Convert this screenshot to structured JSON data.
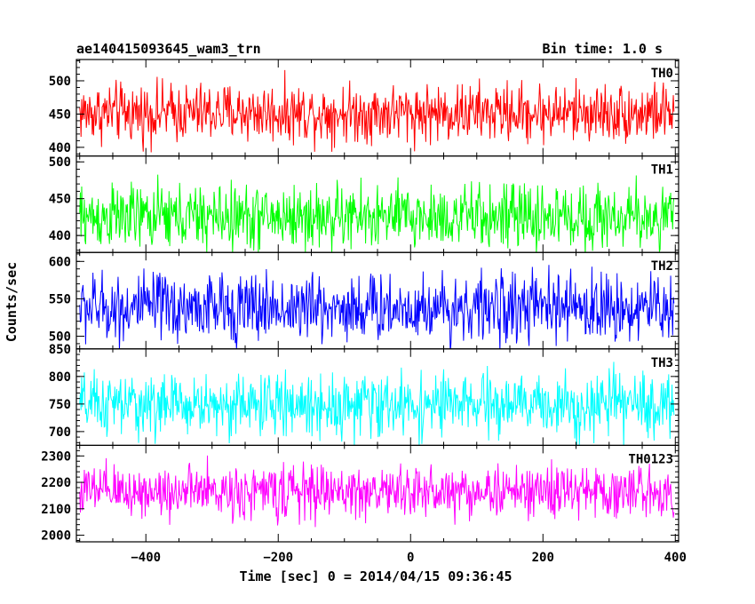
{
  "chart_data": {
    "type": "line",
    "title_left": "ae140415093645_wam3_trn",
    "title_right": "Bin time: 1.0 s",
    "xlabel": "Time [sec] 0 = 2014/04/15 09:36:45",
    "ylabel": "Counts/sec",
    "xlim": [
      -505,
      405
    ],
    "x_step": 1.0,
    "x_start": -500,
    "x_end": 398,
    "x_ticks": [
      -400,
      -200,
      0,
      200,
      400
    ],
    "x_tick_labels": [
      "−400",
      "−200",
      "0",
      "200",
      "400"
    ],
    "grid": false,
    "panels": [
      {
        "name": "TH0",
        "color": "#ff0000",
        "ylim": [
          387,
          532
        ],
        "y_ticks": [
          400,
          450,
          500
        ],
        "y_tick_labels": [
          "400",
          "450",
          "500"
        ],
        "level": 452,
        "spread": 22
      },
      {
        "name": "TH1",
        "color": "#00ff00",
        "ylim": [
          377,
          508
        ],
        "y_ticks": [
          400,
          450,
          500
        ],
        "y_tick_labels": [
          "400",
          "450",
          "500"
        ],
        "level": 425,
        "spread": 22
      },
      {
        "name": "TH2",
        "color": "#0000ff",
        "ylim": [
          483,
          612
        ],
        "y_ticks": [
          500,
          550,
          600
        ],
        "y_tick_labels": [
          "500",
          "550",
          "600"
        ],
        "level": 538,
        "spread": 23
      },
      {
        "name": "TH3",
        "color": "#00ffff",
        "ylim": [
          675,
          850
        ],
        "y_ticks": [
          700,
          750,
          800,
          850
        ],
        "y_tick_labels": [
          "700",
          "750",
          "800",
          "850"
        ],
        "level": 748,
        "spread": 28
      },
      {
        "name": "TH0123",
        "color": "#ff00ff",
        "ylim": [
          1975,
          2340
        ],
        "y_ticks": [
          2000,
          2100,
          2200,
          2300
        ],
        "y_tick_labels": [
          "2000",
          "2100",
          "2200",
          "2300"
        ],
        "level": 2165,
        "spread": 50
      }
    ]
  }
}
